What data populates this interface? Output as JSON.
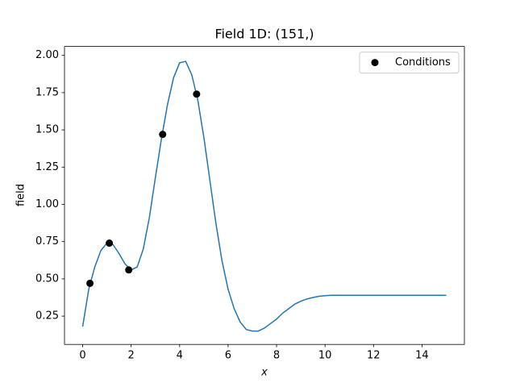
{
  "chart_data": {
    "type": "line",
    "title": "Field 1D: (151,)",
    "xlabel": "x",
    "ylabel": "field",
    "color": "#1f77b4",
    "x": [
      0,
      0.25,
      0.5,
      0.75,
      1,
      1.25,
      1.5,
      1.75,
      2,
      2.25,
      2.5,
      2.75,
      3,
      3.25,
      3.5,
      3.75,
      4,
      4.25,
      4.5,
      4.75,
      5,
      5.25,
      5.5,
      5.75,
      6,
      6.25,
      6.5,
      6.75,
      7,
      7.25,
      7.5,
      7.75,
      8,
      8.25,
      8.5,
      8.75,
      9,
      9.25,
      9.5,
      9.75,
      10,
      10.25,
      10.5,
      10.75,
      11,
      11.25,
      11.5,
      11.75,
      12,
      12.25,
      12.5,
      12.75,
      13,
      13.25,
      13.5,
      13.75,
      14,
      14.25,
      14.5,
      14.75,
      15
    ],
    "values": [
      0.18,
      0.43,
      0.58,
      0.69,
      0.74,
      0.73,
      0.67,
      0.6,
      0.56,
      0.58,
      0.7,
      0.91,
      1.18,
      1.44,
      1.67,
      1.85,
      1.95,
      1.96,
      1.87,
      1.7,
      1.45,
      1.16,
      0.87,
      0.62,
      0.43,
      0.3,
      0.21,
      0.16,
      0.15,
      0.15,
      0.17,
      0.2,
      0.23,
      0.27,
      0.3,
      0.33,
      0.35,
      0.365,
      0.375,
      0.383,
      0.387,
      0.39,
      0.39,
      0.39,
      0.39,
      0.39,
      0.39,
      0.39,
      0.39,
      0.39,
      0.39,
      0.39,
      0.39,
      0.39,
      0.39,
      0.39,
      0.39,
      0.39,
      0.39,
      0.39,
      0.39
    ],
    "points": {
      "name": "Conditions",
      "color": "#000000",
      "x": [
        0.3,
        1.1,
        1.9,
        3.3,
        4.7
      ],
      "values": [
        0.47,
        0.74,
        0.56,
        1.47,
        1.74
      ]
    },
    "xlim": [
      -0.75,
      15.75
    ],
    "xticks": [
      0,
      2,
      4,
      6,
      8,
      10,
      12,
      14
    ],
    "ylim": [
      0.06,
      2.06
    ],
    "yticks": [
      0.25,
      {
        "value": 0.5,
        "label": "0.50"
      },
      0.75,
      {
        "value": 1,
        "label": "1.00"
      },
      1.25,
      {
        "value": 1.5,
        "label": "1.50"
      },
      1.75,
      {
        "value": 2,
        "label": "2.00"
      }
    ],
    "legend": "upper right"
  }
}
